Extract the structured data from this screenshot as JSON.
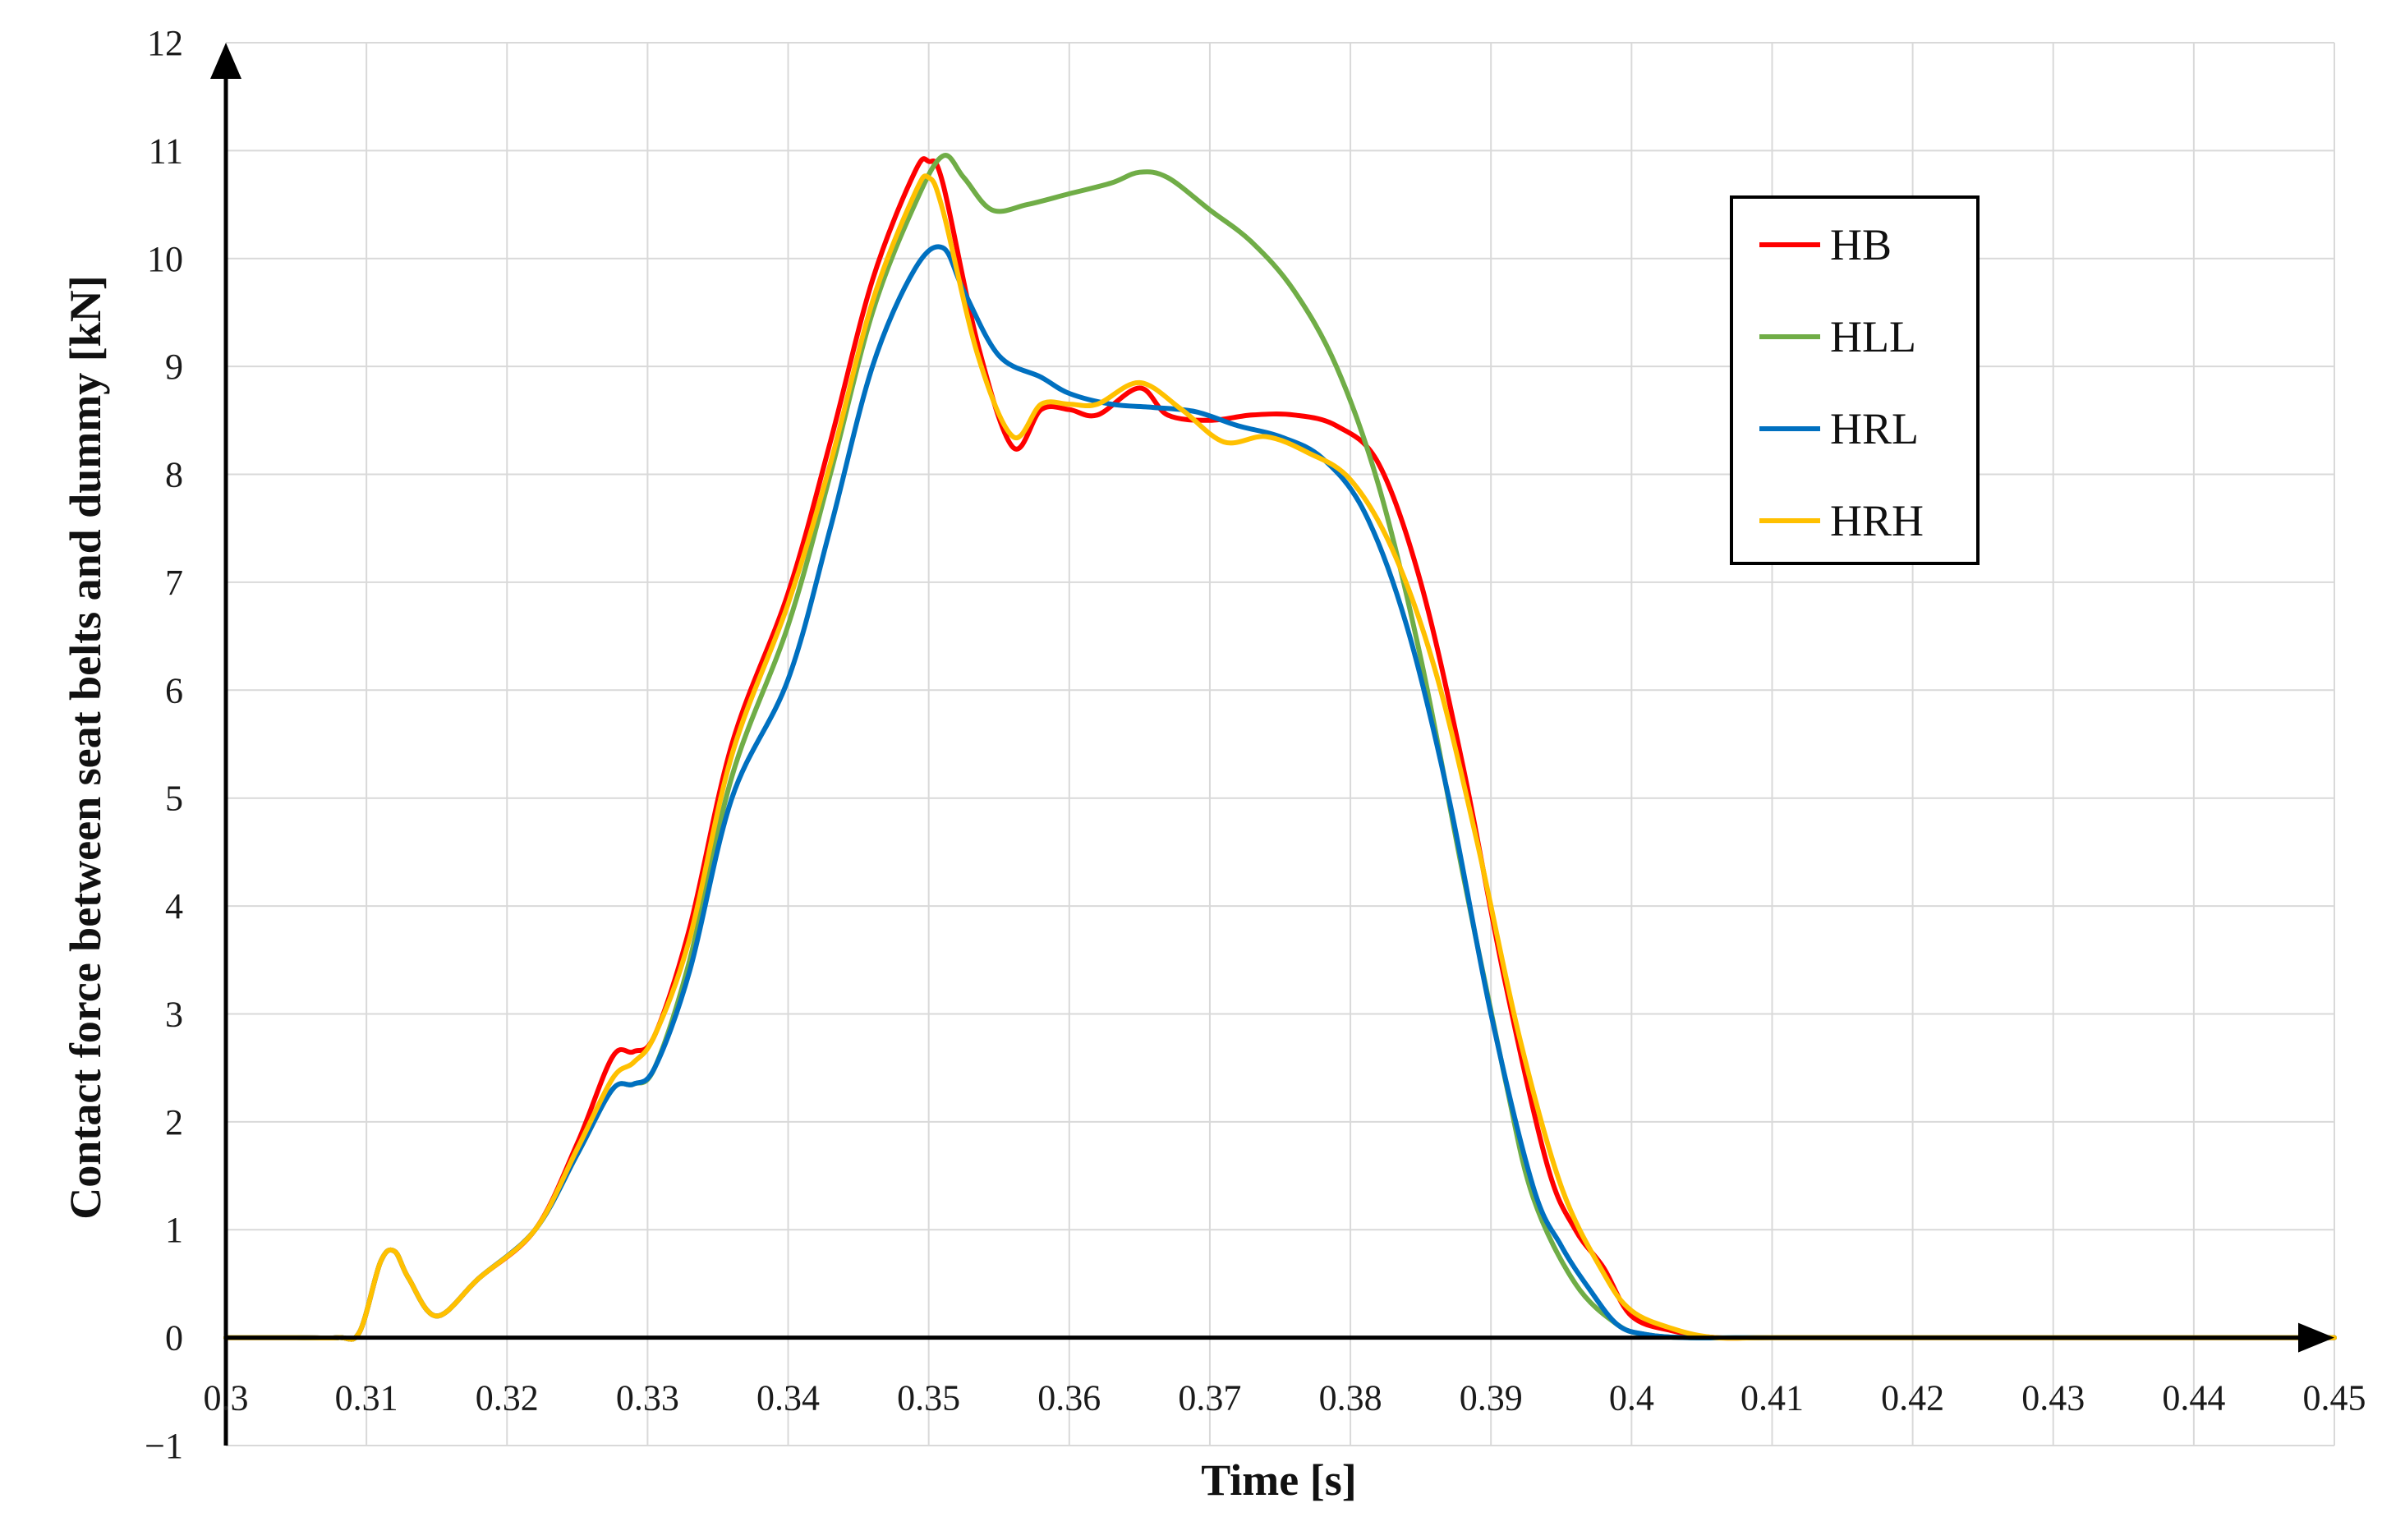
{
  "chart_data": {
    "type": "line",
    "title": "",
    "xlabel": "Time [s]",
    "ylabel": "Contact force between seat belts and dummy [kN]",
    "xlim": [
      0.3,
      0.45
    ],
    "ylim": [
      -1,
      12
    ],
    "x_ticks": [
      0.3,
      0.31,
      0.32,
      0.33,
      0.34,
      0.35,
      0.36,
      0.37,
      0.38,
      0.39,
      0.4,
      0.41,
      0.42,
      0.43,
      0.44,
      0.45
    ],
    "x_tick_labels": [
      "0.3",
      "0.31",
      "0.32",
      "0.33",
      "0.34",
      "0.35",
      "0.36",
      "0.37",
      "0.38",
      "0.39",
      "0.4",
      "0.41",
      "0.42",
      "0.43",
      "0.44",
      "0.45"
    ],
    "y_ticks": [
      -1,
      0,
      1,
      2,
      3,
      4,
      5,
      6,
      7,
      8,
      9,
      10,
      11,
      12
    ],
    "y_tick_labels": [
      "−1",
      "0",
      "1",
      "2",
      "3",
      "4",
      "5",
      "6",
      "7",
      "8",
      "9",
      "10",
      "11",
      "12"
    ],
    "grid": true,
    "legend_position": "top-right",
    "series": [
      {
        "name": "HB",
        "color": "#ff0000",
        "x": [
          0.3,
          0.305,
          0.308,
          0.3095,
          0.311,
          0.312,
          0.313,
          0.315,
          0.318,
          0.322,
          0.325,
          0.3275,
          0.329,
          0.3305,
          0.333,
          0.336,
          0.34,
          0.343,
          0.346,
          0.349,
          0.35,
          0.351,
          0.3535,
          0.356,
          0.358,
          0.36,
          0.362,
          0.365,
          0.367,
          0.37,
          0.373,
          0.376,
          0.379,
          0.382,
          0.385,
          0.388,
          0.391,
          0.394,
          0.396,
          0.398,
          0.4,
          0.403,
          0.406,
          0.41,
          0.42,
          0.43,
          0.44,
          0.45
        ],
        "y": [
          0,
          0,
          0,
          0.05,
          0.7,
          0.8,
          0.55,
          0.2,
          0.55,
          1.0,
          1.8,
          2.6,
          2.65,
          2.8,
          3.8,
          5.5,
          6.9,
          8.3,
          9.8,
          10.8,
          10.9,
          10.7,
          9.2,
          8.25,
          8.6,
          8.6,
          8.55,
          8.8,
          8.55,
          8.5,
          8.55,
          8.55,
          8.45,
          8.1,
          7.0,
          5.3,
          3.3,
          1.6,
          1.0,
          0.65,
          0.2,
          0.06,
          0,
          0,
          0,
          0,
          0,
          0
        ]
      },
      {
        "name": "HLL",
        "color": "#70ad47",
        "x": [
          0.3,
          0.305,
          0.308,
          0.3095,
          0.311,
          0.312,
          0.313,
          0.315,
          0.318,
          0.322,
          0.325,
          0.3275,
          0.329,
          0.3305,
          0.333,
          0.336,
          0.34,
          0.343,
          0.346,
          0.349,
          0.351,
          0.3525,
          0.3545,
          0.357,
          0.36,
          0.363,
          0.365,
          0.367,
          0.37,
          0.373,
          0.376,
          0.379,
          0.382,
          0.385,
          0.388,
          0.391,
          0.393,
          0.396,
          0.399,
          0.401,
          0.404,
          0.41,
          0.42,
          0.43,
          0.44,
          0.45
        ],
        "y": [
          0,
          0,
          0,
          0.05,
          0.7,
          0.8,
          0.55,
          0.2,
          0.55,
          1.0,
          1.7,
          2.3,
          2.35,
          2.5,
          3.5,
          5.2,
          6.6,
          8.0,
          9.5,
          10.5,
          10.95,
          10.75,
          10.45,
          10.5,
          10.6,
          10.7,
          10.8,
          10.75,
          10.45,
          10.15,
          9.7,
          9.0,
          7.9,
          6.3,
          4.3,
          2.4,
          1.3,
          0.5,
          0.12,
          0.03,
          0,
          0,
          0,
          0,
          0,
          0
        ]
      },
      {
        "name": "HRL",
        "color": "#0070c0",
        "x": [
          0.3,
          0.305,
          0.308,
          0.3095,
          0.311,
          0.312,
          0.313,
          0.315,
          0.318,
          0.322,
          0.325,
          0.3275,
          0.329,
          0.3305,
          0.333,
          0.336,
          0.34,
          0.343,
          0.346,
          0.349,
          0.351,
          0.3525,
          0.355,
          0.358,
          0.36,
          0.363,
          0.366,
          0.369,
          0.372,
          0.375,
          0.378,
          0.381,
          0.384,
          0.387,
          0.39,
          0.393,
          0.395,
          0.397,
          0.399,
          0.401,
          0.404,
          0.41,
          0.42,
          0.43,
          0.44,
          0.45
        ],
        "y": [
          0,
          0,
          0,
          0.05,
          0.7,
          0.8,
          0.55,
          0.2,
          0.55,
          1.0,
          1.7,
          2.3,
          2.35,
          2.5,
          3.4,
          5.0,
          6.1,
          7.5,
          9.0,
          9.9,
          10.1,
          9.7,
          9.1,
          8.9,
          8.75,
          8.65,
          8.62,
          8.58,
          8.45,
          8.35,
          8.15,
          7.65,
          6.6,
          5.0,
          3.0,
          1.4,
          0.85,
          0.45,
          0.12,
          0.03,
          0,
          0,
          0,
          0,
          0,
          0
        ]
      },
      {
        "name": "HRH",
        "color": "#ffc000",
        "x": [
          0.3,
          0.305,
          0.308,
          0.3095,
          0.311,
          0.312,
          0.313,
          0.315,
          0.318,
          0.322,
          0.325,
          0.3275,
          0.329,
          0.3305,
          0.333,
          0.336,
          0.34,
          0.343,
          0.346,
          0.349,
          0.35,
          0.351,
          0.3535,
          0.356,
          0.358,
          0.36,
          0.362,
          0.365,
          0.368,
          0.371,
          0.374,
          0.377,
          0.38,
          0.383,
          0.386,
          0.389,
          0.392,
          0.395,
          0.398,
          0.4,
          0.403,
          0.406,
          0.41,
          0.42,
          0.43,
          0.44,
          0.45
        ],
        "y": [
          0,
          0,
          0,
          0.05,
          0.7,
          0.8,
          0.55,
          0.2,
          0.55,
          1.0,
          1.75,
          2.4,
          2.55,
          2.8,
          3.7,
          5.4,
          6.8,
          8.1,
          9.6,
          10.6,
          10.75,
          10.45,
          9.1,
          8.35,
          8.65,
          8.65,
          8.65,
          8.85,
          8.6,
          8.3,
          8.35,
          8.2,
          7.95,
          7.3,
          6.2,
          4.6,
          2.8,
          1.4,
          0.6,
          0.25,
          0.08,
          0,
          0,
          0,
          0,
          0,
          0
        ]
      }
    ]
  }
}
